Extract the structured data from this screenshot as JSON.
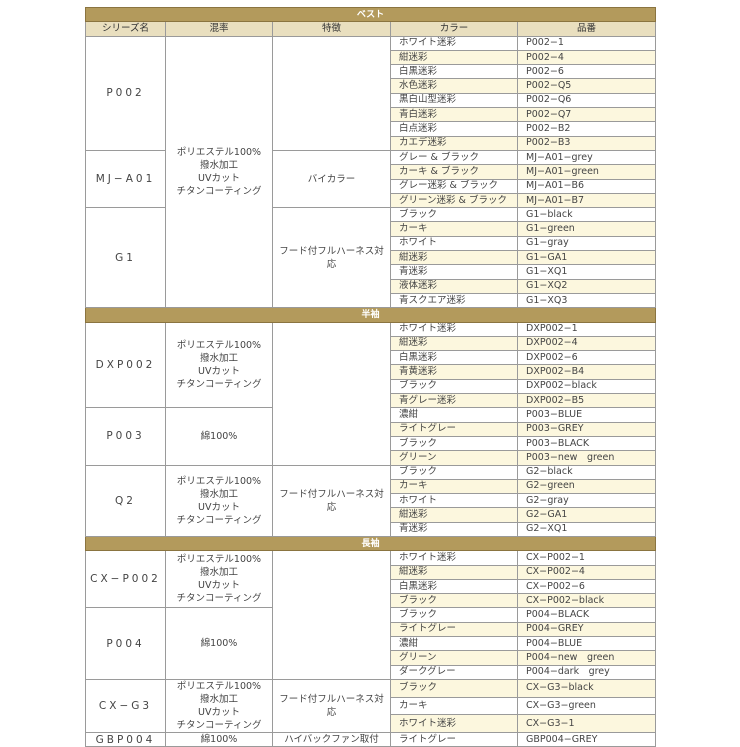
{
  "headers": [
    "シリーズ名",
    "混率",
    "特徴",
    "カラー",
    "品番"
  ],
  "colors": {
    "section_bar": "#b39a5c",
    "header_row": "#e9dfbf",
    "alt_row": "#fcf7de"
  },
  "sections": [
    {
      "title": "ベスト",
      "show_headers": true,
      "series": [
        {
          "name": "P002",
          "colors": [
            [
              "ホワイト迷彩",
              "P002−1"
            ],
            [
              "紺迷彩",
              "P002−4"
            ],
            [
              "白黒迷彩",
              "P002−6"
            ],
            [
              "水色迷彩",
              "P002−Q5"
            ],
            [
              "黒白山型迷彩",
              "P002−Q6"
            ],
            [
              "青白迷彩",
              "P002−Q7"
            ],
            [
              "白点迷彩",
              "P002−B2"
            ],
            [
              "カエデ迷彩",
              "P002−B3"
            ]
          ]
        },
        {
          "name": "MJ−A01",
          "colors": [
            [
              "グレー & ブラック",
              "MJ−A01−grey"
            ],
            [
              "カーキ & ブラック",
              "MJ−A01−green"
            ],
            [
              "グレー迷彩 & ブラック",
              "MJ−A01−B6"
            ],
            [
              "グリーン迷彩 & ブラック",
              "MJ−A01−B7"
            ]
          ]
        },
        {
          "name": "G1",
          "colors": [
            [
              "ブラック",
              "G1−black"
            ],
            [
              "カーキ",
              "G1−green"
            ],
            [
              "ホワイト",
              "G1−gray"
            ],
            [
              "紺迷彩",
              "G1−GA1"
            ],
            [
              "青迷彩",
              "G1−XQ1"
            ],
            [
              "液体迷彩",
              "G1−XQ2"
            ],
            [
              "青スクエア迷彩",
              "G1−XQ3"
            ]
          ]
        }
      ],
      "mix": [
        {
          "lines": [
            "ポリエステル100%",
            "撥水加工",
            "UVカット",
            "チタンコーティング"
          ],
          "series_count": 3
        }
      ],
      "features": [
        {
          "text": "",
          "series_count": 1
        },
        {
          "text": "バイカラー",
          "series_count": 1
        },
        {
          "text": "フード付フルハーネス対応",
          "series_count": 1
        }
      ]
    },
    {
      "title": "半袖",
      "show_headers": false,
      "series": [
        {
          "name": "DXP002",
          "colors": [
            [
              "ホワイト迷彩",
              "DXP002−1"
            ],
            [
              "紺迷彩",
              "DXP002−4"
            ],
            [
              "白黒迷彩",
              "DXP002−6"
            ],
            [
              "青黄迷彩",
              "DXP002−B4"
            ],
            [
              "ブラック",
              "DXP002−black"
            ],
            [
              "青グレー迷彩",
              "DXP002−B5"
            ]
          ]
        },
        {
          "name": "P003",
          "colors": [
            [
              "濃紺",
              "P003−BLUE"
            ],
            [
              "ライトグレー",
              "P003−GREY"
            ],
            [
              "ブラック",
              "P003−BLACK"
            ],
            [
              "グリーン",
              "P003−new　green"
            ]
          ]
        },
        {
          "name": "Q2",
          "colors": [
            [
              "ブラック",
              "G2−black"
            ],
            [
              "カーキ",
              "G2−green"
            ],
            [
              "ホワイト",
              "G2−gray"
            ],
            [
              "紺迷彩",
              "G2−GA1"
            ],
            [
              "青迷彩",
              "G2−XQ1"
            ]
          ]
        }
      ],
      "mix": [
        {
          "lines": [
            "ポリエステル100%",
            "撥水加工",
            "UVカット",
            "チタンコーティング"
          ],
          "series_count": 1
        },
        {
          "lines": [
            "綿100%"
          ],
          "series_count": 1
        },
        {
          "lines": [
            "ポリエステル100%",
            "撥水加工",
            "UVカット",
            "チタンコーティング"
          ],
          "series_count": 1
        }
      ],
      "features": [
        {
          "text": "",
          "series_count": 2
        },
        {
          "text": "フード付フルハーネス対応",
          "series_count": 1
        }
      ]
    },
    {
      "title": "長袖",
      "show_headers": false,
      "series": [
        {
          "name": "CX−P002",
          "colors": [
            [
              "ホワイト迷彩",
              "CX−P002−1"
            ],
            [
              "紺迷彩",
              "CX−P002−4"
            ],
            [
              "白黒迷彩",
              "CX−P002−6"
            ],
            [
              "ブラック",
              "CX−P002−black"
            ]
          ]
        },
        {
          "name": "P004",
          "colors": [
            [
              "ブラック",
              "P004−BLACK"
            ],
            [
              "ライトグレー",
              "P004−GREY"
            ],
            [
              "濃紺",
              "P004−BLUE"
            ],
            [
              "グリーン",
              "P004−new　green"
            ],
            [
              "ダークグレー",
              "P004−dark　grey"
            ]
          ]
        },
        {
          "name": "CX−G3",
          "colors": [
            [
              "ブラック",
              "CX−G3−black"
            ],
            [
              "カーキ",
              "CX−G3−green"
            ],
            [
              "ホワイト迷彩",
              "CX−G3−1"
            ]
          ]
        },
        {
          "name": "GBP004",
          "colors": [
            [
              "ライトグレー",
              "GBP004−GREY"
            ]
          ]
        }
      ],
      "mix": [
        {
          "lines": [
            "ポリエステル100%",
            "撥水加工",
            "UVカット",
            "チタンコーティング"
          ],
          "series_count": 1
        },
        {
          "lines": [
            "綿100%"
          ],
          "series_count": 1
        },
        {
          "lines": [
            "ポリエステル100%",
            "撥水加工",
            "UVカット",
            "チタンコーティング"
          ],
          "series_count": 1
        },
        {
          "lines": [
            "綿100%"
          ],
          "series_count": 1
        }
      ],
      "features": [
        {
          "text": "",
          "series_count": 2
        },
        {
          "text": "フード付フルハーネス対応",
          "series_count": 1
        },
        {
          "text": "ハイバックファン取付",
          "series_count": 1
        }
      ]
    }
  ]
}
